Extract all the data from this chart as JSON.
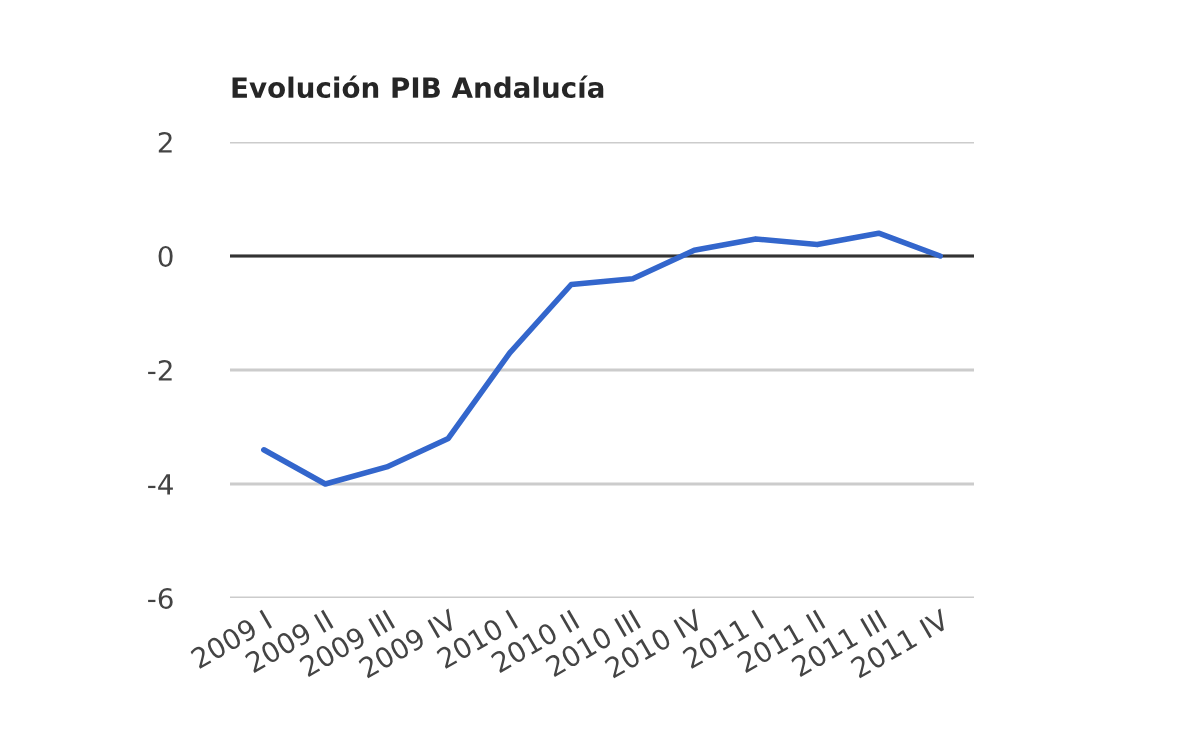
{
  "chart_data": {
    "type": "line",
    "title": "Evolución PIB Andalucía",
    "categories": [
      "2009 I",
      "2009 II",
      "2009 III",
      "2009 IV",
      "2010 I",
      "2010 II",
      "2010 III",
      "2010 IV",
      "2011 I",
      "2011 II",
      "2011 III",
      "2011 IV"
    ],
    "series": [
      {
        "color": "#3366cc",
        "values": [
          -3.4,
          -4.0,
          -3.7,
          -3.2,
          -1.7,
          -0.5,
          -0.4,
          0.1,
          0.3,
          0.2,
          0.4,
          0.0
        ]
      }
    ],
    "ylim": [
      -6,
      2
    ],
    "yticks": [
      -6,
      -4,
      -2,
      0,
      2
    ],
    "grid": "y",
    "marker": "none",
    "line_style": "solid",
    "ref_lines": [
      {
        "axis": "y",
        "value": 0,
        "color": "#333333"
      }
    ]
  }
}
